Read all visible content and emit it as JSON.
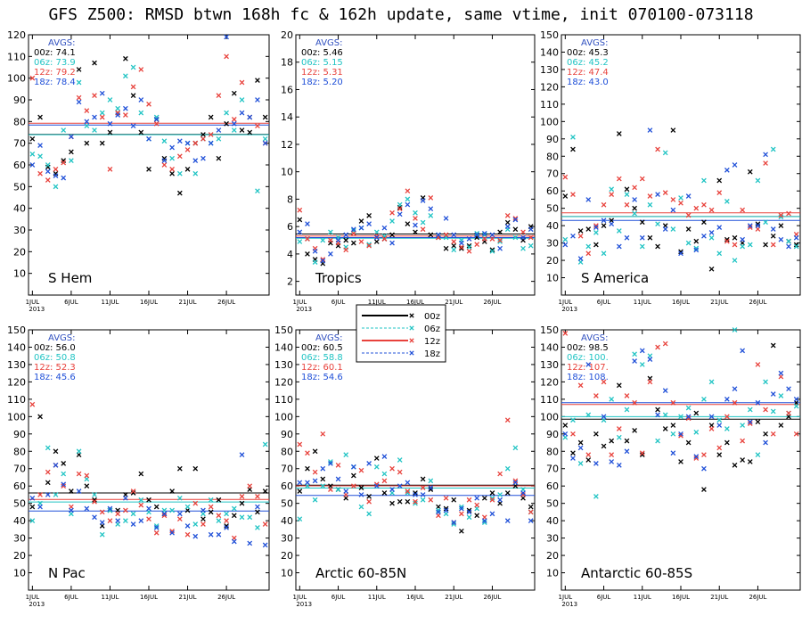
{
  "title": "GFS Z500: RMSD btwn 168h fc & 162h update, same vtime, init 070100-073118",
  "avgs_label": "AVGS:",
  "x_axis": {
    "ticks": [
      "1JUL",
      "6JUL",
      "11JUL",
      "16JUL",
      "21JUL",
      "26JUL"
    ],
    "year": "2013",
    "range_days": [
      1,
      31
    ]
  },
  "colors": {
    "00z": "#000000",
    "06z": "#21c4c4",
    "12z": "#e8423c",
    "18z": "#2050d8",
    "avg_label": "#3050c0"
  },
  "legend": {
    "entries": [
      {
        "name": "00z",
        "color": "#000000",
        "style": "solid"
      },
      {
        "name": "06z",
        "color": "#21c4c4",
        "style": "dashed"
      },
      {
        "name": "12z",
        "color": "#e8423c",
        "style": "solid"
      },
      {
        "name": "18z",
        "color": "#2050d8",
        "style": "dashed"
      }
    ]
  },
  "chart_data": [
    {
      "type": "scatter",
      "panel": "S Hem",
      "ylim": [
        0,
        120
      ],
      "yticks": [
        10,
        20,
        30,
        40,
        50,
        60,
        70,
        80,
        90,
        100,
        110,
        120
      ],
      "avgs": [
        {
          "cycle": "00z",
          "text": "74.1",
          "value": 74.1
        },
        {
          "cycle": "06z",
          "text": "73.9",
          "value": 73.9
        },
        {
          "cycle": "12z",
          "text": "79.2",
          "value": 79.2
        },
        {
          "cycle": "18z",
          "text": "78.4",
          "value": 78.4
        }
      ],
      "series": [
        {
          "name": "00z",
          "values": [
            72,
            82,
            59,
            56,
            62,
            66,
            104,
            70,
            107,
            70,
            75,
            84,
            109,
            92,
            75,
            58,
            81,
            63,
            56,
            47,
            58,
            70,
            74,
            82,
            63,
            79,
            93,
            76,
            75,
            99,
            82
          ]
        },
        {
          "name": "06z",
          "values": [
            65,
            64,
            60,
            50,
            76,
            62,
            98,
            78,
            76,
            84,
            90,
            86,
            101,
            105,
            84,
            72,
            82,
            71,
            63,
            56,
            70,
            56,
            72,
            70,
            72,
            84,
            76,
            90,
            82,
            48,
            72
          ]
        },
        {
          "name": "12z",
          "values": [
            100,
            56,
            53,
            58,
            61,
            73,
            91,
            85,
            92,
            82,
            58,
            84,
            83,
            96,
            104,
            88,
            79,
            60,
            58,
            64,
            67,
            70,
            72,
            74,
            92,
            110,
            81,
            98,
            82,
            78,
            70
          ]
        },
        {
          "name": "18z",
          "values": [
            60,
            69,
            57,
            55,
            54,
            73,
            89,
            80,
            82,
            93,
            79,
            83,
            86,
            78,
            90,
            72,
            81,
            62,
            68,
            71,
            70,
            62,
            63,
            70,
            76,
            119,
            79,
            84,
            82,
            90,
            70
          ]
        }
      ]
    },
    {
      "type": "scatter",
      "panel": "Tropics",
      "ylim": [
        1,
        20
      ],
      "yticks": [
        2,
        4,
        6,
        8,
        10,
        12,
        14,
        16,
        18,
        20
      ],
      "avgs": [
        {
          "cycle": "00z",
          "text": "5.46",
          "value": 5.46
        },
        {
          "cycle": "06z",
          "text": "5.15",
          "value": 5.15
        },
        {
          "cycle": "12z",
          "text": "5.31",
          "value": 5.31
        },
        {
          "cycle": "18z",
          "text": "5.20",
          "value": 5.2
        }
      ],
      "series": [
        {
          "name": "00z",
          "values": [
            6.5,
            4.0,
            3.6,
            3.3,
            4.8,
            4.6,
            5.0,
            4.8,
            6.4,
            6.8,
            4.9,
            5.1,
            5.4,
            7.4,
            6.2,
            5.6,
            8.1,
            5.4,
            5.2,
            4.4,
            4.6,
            4.4,
            4.6,
            5.2,
            4.9,
            4.3,
            5.6,
            6.3,
            5.8,
            5.0,
            6.0
          ]
        },
        {
          "name": "06z",
          "values": [
            4.9,
            5.1,
            3.4,
            5.0,
            5.6,
            5.2,
            4.5,
            5.7,
            5.9,
            4.7,
            5.6,
            5.3,
            6.4,
            7.6,
            8.0,
            7.0,
            6.3,
            6.8,
            5.4,
            5.2,
            4.3,
            5.0,
            4.5,
            5.5,
            5.4,
            4.2,
            4.9,
            5.8,
            5.2,
            4.4,
            4.6
          ]
        },
        {
          "name": "12z",
          "values": [
            7.2,
            5.1,
            4.4,
            3.6,
            5.0,
            4.8,
            4.3,
            5.5,
            4.9,
            4.6,
            5.3,
            5.1,
            7.0,
            7.3,
            8.6,
            6.6,
            5.8,
            8.1,
            5.2,
            5.4,
            4.9,
            4.5,
            4.2,
            4.7,
            5.1,
            5.1,
            5.0,
            6.8,
            6.6,
            5.6,
            5.2
          ]
        },
        {
          "name": "18z",
          "values": [
            5.6,
            6.2,
            4.2,
            3.5,
            4.0,
            5.0,
            5.4,
            5.8,
            5.9,
            6.2,
            5.2,
            5.9,
            4.8,
            6.9,
            7.6,
            6.1,
            7.9,
            7.3,
            5.4,
            6.6,
            5.4,
            4.8,
            5.1,
            5.4,
            5.5,
            5.4,
            4.4,
            6.0,
            6.5,
            5.2,
            5.8
          ]
        }
      ]
    },
    {
      "type": "scatter",
      "panel": "S America",
      "ylim": [
        0,
        150
      ],
      "yticks": [
        10,
        20,
        30,
        40,
        50,
        60,
        70,
        80,
        90,
        100,
        110,
        120,
        130,
        140,
        150
      ],
      "avgs": [
        {
          "cycle": "00z",
          "text": "45.3",
          "value": 45.3
        },
        {
          "cycle": "06z",
          "text": "45.2",
          "value": 45.2
        },
        {
          "cycle": "12z",
          "text": "47.4",
          "value": 47.4
        },
        {
          "cycle": "18z",
          "text": "43.0",
          "value": 43.0
        }
      ],
      "series": [
        {
          "name": "00z",
          "values": [
            57,
            84,
            37,
            38,
            29,
            40,
            43,
            93,
            61,
            50,
            42,
            33,
            28,
            40,
            95,
            25,
            38,
            31,
            42,
            15,
            66,
            32,
            33,
            30,
            71,
            41,
            29,
            34,
            40,
            31,
            29
          ]
        },
        {
          "name": "06z",
          "values": [
            32,
            91,
            19,
            28,
            36,
            24,
            61,
            37,
            58,
            47,
            28,
            52,
            41,
            82,
            38,
            56,
            30,
            27,
            66,
            33,
            24,
            54,
            20,
            28,
            29,
            66,
            42,
            84,
            45,
            31,
            28
          ]
        },
        {
          "name": "12z",
          "values": [
            68,
            58,
            34,
            24,
            40,
            52,
            58,
            67,
            52,
            62,
            67,
            57,
            84,
            59,
            55,
            53,
            46,
            50,
            52,
            49,
            59,
            31,
            29,
            49,
            39,
            38,
            76,
            29,
            46,
            47,
            35
          ]
        },
        {
          "name": "18z",
          "values": [
            29,
            34,
            21,
            55,
            39,
            43,
            41,
            28,
            33,
            55,
            33,
            95,
            58,
            38,
            49,
            24,
            57,
            26,
            34,
            36,
            39,
            72,
            75,
            32,
            40,
            40,
            81,
            38,
            32,
            28,
            33
          ]
        }
      ]
    },
    {
      "type": "scatter",
      "panel": "N Pac",
      "ylim": [
        0,
        150
      ],
      "yticks": [
        10,
        20,
        30,
        40,
        50,
        60,
        70,
        80,
        90,
        100,
        110,
        120,
        130,
        140,
        150
      ],
      "avgs": [
        {
          "cycle": "00z",
          "text": "56.0",
          "value": 56.0
        },
        {
          "cycle": "06z",
          "text": "50.8",
          "value": 50.8
        },
        {
          "cycle": "12z",
          "text": "52.3",
          "value": 52.3
        },
        {
          "cycle": "18z",
          "text": "45.6",
          "value": 45.6
        }
      ],
      "series": [
        {
          "name": "00z",
          "values": [
            48,
            100,
            62,
            80,
            73,
            57,
            78,
            60,
            52,
            37,
            46,
            46,
            55,
            56,
            67,
            52,
            48,
            44,
            57,
            70,
            46,
            70,
            41,
            45,
            52,
            37,
            43,
            50,
            58,
            45,
            57
          ]
        },
        {
          "name": "06z",
          "values": [
            40,
            50,
            82,
            55,
            67,
            44,
            80,
            64,
            55,
            32,
            46,
            38,
            40,
            44,
            52,
            45,
            37,
            46,
            46,
            53,
            48,
            38,
            44,
            52,
            40,
            44,
            47,
            42,
            42,
            36,
            84
          ]
        },
        {
          "name": "12z",
          "values": [
            107,
            55,
            68,
            72,
            60,
            48,
            67,
            66,
            51,
            45,
            40,
            44,
            46,
            57,
            49,
            41,
            33,
            43,
            34,
            41,
            32,
            50,
            38,
            48,
            43,
            40,
            30,
            54,
            60,
            54,
            38
          ]
        },
        {
          "name": "18z",
          "values": [
            53,
            48,
            55,
            72,
            61,
            46,
            57,
            47,
            42,
            39,
            47,
            40,
            53,
            38,
            40,
            47,
            36,
            44,
            33,
            44,
            37,
            31,
            46,
            32,
            32,
            36,
            28,
            78,
            27,
            48,
            26
          ]
        }
      ]
    },
    {
      "type": "scatter",
      "panel": "Arctic 60-85N",
      "ylim": [
        0,
        150
      ],
      "yticks": [
        10,
        20,
        30,
        40,
        50,
        60,
        70,
        80,
        90,
        100,
        110,
        120,
        130,
        140,
        150
      ],
      "avgs": [
        {
          "cycle": "00z",
          "text": "60.5",
          "value": 60.5
        },
        {
          "cycle": "06z",
          "text": "58.8",
          "value": 58.8
        },
        {
          "cycle": "12z",
          "text": "60.1",
          "value": 60.1
        },
        {
          "cycle": "18z",
          "text": "54.6",
          "value": 54.6
        }
      ],
      "series": [
        {
          "name": "00z",
          "values": [
            57,
            70,
            80,
            64,
            60,
            58,
            53,
            66,
            59,
            54,
            76,
            56,
            50,
            51,
            51,
            56,
            64,
            58,
            48,
            47,
            52,
            34,
            46,
            43,
            53,
            56,
            50,
            56,
            60,
            53,
            48
          ]
        },
        {
          "name": "06z",
          "values": [
            41,
            60,
            52,
            60,
            74,
            58,
            78,
            71,
            48,
            44,
            71,
            67,
            56,
            75,
            56,
            50,
            52,
            63,
            46,
            44,
            38,
            48,
            42,
            47,
            39,
            53,
            55,
            70,
            82,
            58,
            45
          ]
        },
        {
          "name": "12z",
          "values": [
            84,
            79,
            68,
            90,
            58,
            72,
            55,
            60,
            69,
            51,
            61,
            63,
            70,
            68,
            57,
            51,
            59,
            52,
            43,
            53,
            39,
            44,
            52,
            49,
            42,
            52,
            67,
            98,
            63,
            55,
            45
          ]
        },
        {
          "name": "18z",
          "values": [
            62,
            62,
            63,
            70,
            73,
            64,
            57,
            71,
            55,
            73,
            60,
            77,
            58,
            60,
            62,
            55,
            55,
            59,
            45,
            46,
            39,
            47,
            45,
            53,
            40,
            44,
            52,
            40,
            62,
            56,
            40
          ]
        }
      ]
    },
    {
      "type": "scatter",
      "panel": "Antarctic 60-85S",
      "ylim": [
        0,
        150
      ],
      "yticks": [
        10,
        20,
        30,
        40,
        50,
        60,
        70,
        80,
        90,
        100,
        110,
        120,
        130,
        140,
        150
      ],
      "avgs": [
        {
          "cycle": "00z",
          "text": "98.5",
          "value": 98.5
        },
        {
          "cycle": "06z",
          "text": "100.",
          "value": 100.0
        },
        {
          "cycle": "12z",
          "text": "107.",
          "value": 107.0
        },
        {
          "cycle": "18z",
          "text": "108.",
          "value": 108.0
        }
      ],
      "series": [
        {
          "name": "00z",
          "values": [
            95,
            79,
            85,
            75,
            90,
            83,
            86,
            118,
            86,
            92,
            78,
            122,
            104,
            93,
            95,
            74,
            85,
            102,
            58,
            95,
            78,
            85,
            72,
            75,
            74,
            97,
            90,
            141,
            95,
            100,
            108
          ]
        },
        {
          "name": "06z",
          "values": [
            88,
            98,
            73,
            101,
            54,
            98,
            110,
            88,
            104,
            136,
            130,
            135,
            86,
            101,
            90,
            100,
            105,
            91,
            110,
            120,
            98,
            93,
            150,
            95,
            104,
            78,
            120,
            103,
            112,
            102,
            106
          ]
        },
        {
          "name": "12z",
          "values": [
            148,
            90,
            118,
            78,
            112,
            120,
            78,
            93,
            112,
            108,
            79,
            120,
            140,
            142,
            108,
            89,
            99,
            76,
            78,
            93,
            82,
            100,
            108,
            86,
            96,
            130,
            104,
            90,
            123,
            102,
            90
          ]
        },
        {
          "name": "18z",
          "values": [
            90,
            76,
            82,
            130,
            73,
            100,
            74,
            72,
            80,
            132,
            138,
            133,
            101,
            115,
            79,
            90,
            100,
            77,
            70,
            100,
            95,
            110,
            116,
            138,
            97,
            108,
            85,
            113,
            125,
            116,
            110
          ]
        }
      ]
    }
  ]
}
